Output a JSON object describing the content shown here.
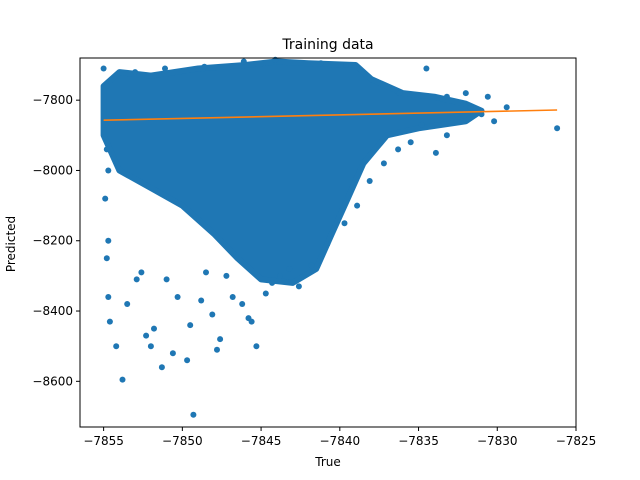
{
  "chart_data": {
    "type": "scatter",
    "title": "Training data",
    "xlabel": "True",
    "ylabel": "Predicted",
    "xlim": [
      -7856.5,
      -7825
    ],
    "ylim": [
      -8730,
      -7680
    ],
    "xticks": [
      -7855,
      -7850,
      -7845,
      -7840,
      -7835,
      -7830,
      -7825
    ],
    "xtick_labels": [
      "−7855",
      "−7850",
      "−7845",
      "−7840",
      "−7835",
      "−7830",
      "−7825"
    ],
    "yticks": [
      -8600,
      -8400,
      -8200,
      -8000,
      -7800
    ],
    "ytick_labels": [
      "−8600",
      "−8400",
      "−8200",
      "−8000",
      "−7800"
    ],
    "grid": false,
    "series": [
      {
        "kind": "scatter",
        "color": "#1f77b4",
        "points": [
          [
            -7855.0,
            -7710
          ],
          [
            -7854.8,
            -7760
          ],
          [
            -7854.9,
            -7870
          ],
          [
            -7854.8,
            -7940
          ],
          [
            -7854.7,
            -8000
          ],
          [
            -7854.9,
            -8080
          ],
          [
            -7854.7,
            -8200
          ],
          [
            -7854.8,
            -8250
          ],
          [
            -7854.7,
            -8360
          ],
          [
            -7854.6,
            -8430
          ],
          [
            -7854.2,
            -8500
          ],
          [
            -7853.8,
            -8595
          ],
          [
            -7853.5,
            -8380
          ],
          [
            -7852.9,
            -8310
          ],
          [
            -7852.6,
            -8290
          ],
          [
            -7852.3,
            -8470
          ],
          [
            -7852.0,
            -8500
          ],
          [
            -7851.8,
            -8450
          ],
          [
            -7851.3,
            -8560
          ],
          [
            -7851.0,
            -8310
          ],
          [
            -7850.6,
            -8520
          ],
          [
            -7850.3,
            -8360
          ],
          [
            -7849.7,
            -8540
          ],
          [
            -7849.5,
            -8440
          ],
          [
            -7849.3,
            -8695
          ],
          [
            -7848.8,
            -8370
          ],
          [
            -7848.5,
            -8290
          ],
          [
            -7848.1,
            -8410
          ],
          [
            -7847.8,
            -8510
          ],
          [
            -7847.6,
            -8480
          ],
          [
            -7847.2,
            -8300
          ],
          [
            -7846.8,
            -8360
          ],
          [
            -7846.2,
            -8380
          ],
          [
            -7845.8,
            -8420
          ],
          [
            -7845.6,
            -8430
          ],
          [
            -7845.3,
            -8500
          ],
          [
            -7844.7,
            -8350
          ],
          [
            -7844.3,
            -8320
          ],
          [
            -7843.8,
            -8300
          ],
          [
            -7843.2,
            -8280
          ],
          [
            -7842.6,
            -8330
          ],
          [
            -7841.8,
            -8270
          ],
          [
            -7840.8,
            -8210
          ],
          [
            -7839.7,
            -8150
          ],
          [
            -7838.9,
            -8100
          ],
          [
            -7838.1,
            -8030
          ],
          [
            -7837.2,
            -7980
          ],
          [
            -7836.3,
            -7940
          ],
          [
            -7835.5,
            -7920
          ],
          [
            -7834.8,
            -7870
          ],
          [
            -7833.9,
            -7950
          ],
          [
            -7833.2,
            -7900
          ],
          [
            -7832.6,
            -7840
          ],
          [
            -7832.0,
            -7780
          ],
          [
            -7831.7,
            -7820
          ],
          [
            -7831.0,
            -7840
          ],
          [
            -7830.2,
            -7860
          ],
          [
            -7830.6,
            -7790
          ],
          [
            -7829.4,
            -7820
          ],
          [
            -7826.2,
            -7880
          ],
          [
            -7834.5,
            -7710
          ],
          [
            -7833.2,
            -7790
          ],
          [
            -7836.2,
            -7780
          ],
          [
            -7839.6,
            -7700
          ],
          [
            -7841.2,
            -7695
          ],
          [
            -7844.1,
            -7685
          ],
          [
            -7846.1,
            -7690
          ],
          [
            -7848.6,
            -7705
          ],
          [
            -7851.1,
            -7710
          ],
          [
            -7853.0,
            -7720
          ]
        ]
      },
      {
        "kind": "line",
        "color": "#ff7f0e",
        "points": [
          [
            -7855.0,
            -7857
          ],
          [
            -7826.2,
            -7828
          ]
        ]
      }
    ]
  }
}
